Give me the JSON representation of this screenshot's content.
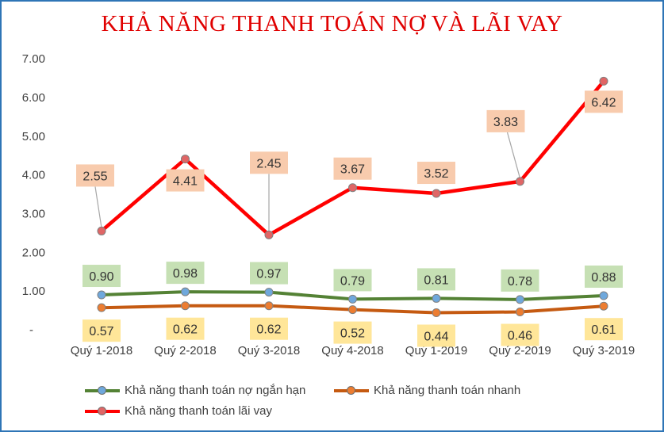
{
  "chart_data": {
    "type": "line",
    "title": "KHẢ NĂNG THANH TOÁN NỢ VÀ LÃI VAY",
    "categories": [
      "Quý 1-2018",
      "Quý 2-2018",
      "Quý 3-2018",
      "Quý 4-2018",
      "Quý 1-2019",
      "Quý 2-2019",
      "Quý 3-2019"
    ],
    "y_ticks": [
      "-",
      "1.00",
      "2.00",
      "3.00",
      "4.00",
      "5.00",
      "6.00",
      "7.00"
    ],
    "ylim": [
      0,
      7
    ],
    "grid": false,
    "legend_position": "bottom-left",
    "series": [
      {
        "name": "Khả năng thanh toán nợ ngắn hạn",
        "values": [
          0.9,
          0.98,
          0.97,
          0.79,
          0.81,
          0.78,
          0.88
        ],
        "labels": [
          "0.90",
          "0.98",
          "0.97",
          "0.79",
          "0.81",
          "0.78",
          "0.88"
        ],
        "color": "#548235",
        "marker_color": "#6fa8dc",
        "label_bg": "#c6e0b4",
        "label_position": "above"
      },
      {
        "name": "Khả năng thanh toán nhanh",
        "values": [
          0.57,
          0.62,
          0.62,
          0.52,
          0.44,
          0.46,
          0.61
        ],
        "labels": [
          "0.57",
          "0.62",
          "0.62",
          "0.52",
          "0.44",
          "0.46",
          "0.61"
        ],
        "color": "#c55a11",
        "marker_color": "#ed7d31",
        "label_bg": "#ffe699",
        "label_position": "below"
      },
      {
        "name": "Khả năng thanh toán lãi vay",
        "values": [
          2.55,
          4.41,
          2.45,
          3.67,
          3.52,
          3.83,
          6.42
        ],
        "labels": [
          "2.55",
          "4.41",
          "2.45",
          "3.67",
          "3.52",
          "3.83",
          "6.42"
        ],
        "color": "#ff0000",
        "marker_color": "#e06666",
        "label_bg": "#f8cbad",
        "label_position": "above"
      }
    ]
  }
}
